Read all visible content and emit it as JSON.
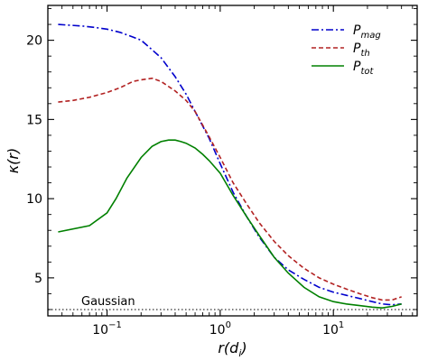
{
  "chart_data": {
    "type": "line",
    "title": "",
    "xlabel": "r(d_i)",
    "ylabel": "κ(r)",
    "xscale": "log",
    "xlim": [
      0.03,
      55
    ],
    "ylim": [
      2.6,
      22.2
    ],
    "xticks": [
      {
        "value": 0.1,
        "base": "10",
        "exp": "−1"
      },
      {
        "value": 1,
        "base": "10",
        "exp": "0"
      },
      {
        "value": 10,
        "base": "10",
        "exp": "1"
      }
    ],
    "yticks": [
      5,
      10,
      15,
      20
    ],
    "grid": false,
    "legend": {
      "position": "top-right",
      "entries": [
        {
          "base": "P",
          "sub": "mag"
        },
        {
          "base": "P",
          "sub": "th"
        },
        {
          "base": "P",
          "sub": "tot"
        }
      ]
    },
    "series": [
      {
        "name": "P_mag",
        "color": "#0000cc",
        "dash": "dashdot",
        "x": [
          0.037,
          0.06,
          0.08,
          0.1,
          0.13,
          0.17,
          0.2,
          0.25,
          0.3,
          0.4,
          0.5,
          0.6,
          0.8,
          1.0,
          1.3,
          1.7,
          2.2,
          3.0,
          4.0,
          5.5,
          7.5,
          10,
          13,
          17,
          22,
          27,
          33,
          40
        ],
        "values": [
          21.0,
          20.9,
          20.8,
          20.7,
          20.5,
          20.2,
          20.0,
          19.4,
          18.9,
          17.7,
          16.6,
          15.5,
          13.8,
          12.2,
          10.4,
          8.9,
          7.6,
          6.3,
          5.5,
          4.9,
          4.4,
          4.1,
          3.9,
          3.7,
          3.5,
          3.35,
          3.3,
          3.35
        ]
      },
      {
        "name": "P_th",
        "color": "#b22222",
        "dash": "dashed",
        "x": [
          0.037,
          0.05,
          0.07,
          0.1,
          0.13,
          0.17,
          0.2,
          0.25,
          0.3,
          0.4,
          0.5,
          0.6,
          0.8,
          1.0,
          1.3,
          1.7,
          2.2,
          3.0,
          4.0,
          5.5,
          7.5,
          10,
          13,
          17,
          22,
          27,
          33,
          40
        ],
        "values": [
          16.1,
          16.2,
          16.4,
          16.7,
          17.0,
          17.4,
          17.5,
          17.6,
          17.4,
          16.8,
          16.2,
          15.5,
          13.9,
          12.6,
          11.0,
          9.7,
          8.5,
          7.3,
          6.4,
          5.6,
          5.0,
          4.6,
          4.3,
          4.0,
          3.75,
          3.6,
          3.6,
          3.8
        ]
      },
      {
        "name": "P_tot",
        "color": "#008000",
        "dash": "solid",
        "x": [
          0.037,
          0.07,
          0.1,
          0.12,
          0.15,
          0.2,
          0.25,
          0.3,
          0.35,
          0.4,
          0.45,
          0.5,
          0.6,
          0.7,
          0.8,
          1.0,
          1.3,
          1.7,
          2.2,
          3.0,
          4.0,
          5.5,
          7.5,
          10,
          13,
          17,
          22,
          27,
          33,
          40
        ],
        "values": [
          7.9,
          8.3,
          9.1,
          10.0,
          11.3,
          12.6,
          13.3,
          13.6,
          13.7,
          13.7,
          13.6,
          13.5,
          13.2,
          12.8,
          12.4,
          11.6,
          10.2,
          8.9,
          7.7,
          6.3,
          5.3,
          4.4,
          3.8,
          3.5,
          3.35,
          3.25,
          3.15,
          3.1,
          3.2,
          3.35
        ]
      }
    ],
    "reference_line": {
      "y": 3.0,
      "label": "Gaussian",
      "color": "#555555",
      "style": "dotted"
    }
  }
}
